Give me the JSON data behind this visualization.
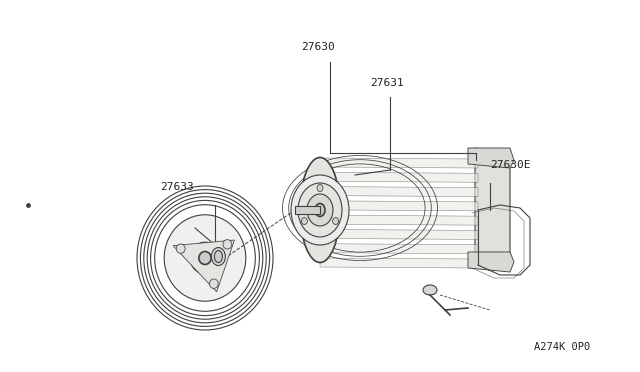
{
  "background_color": "#ffffff",
  "line_color": "#404040",
  "label_color": "#222222",
  "part_number_bottom_right": "A274K 0P0",
  "figsize": [
    6.4,
    3.72
  ],
  "dpi": 100
}
